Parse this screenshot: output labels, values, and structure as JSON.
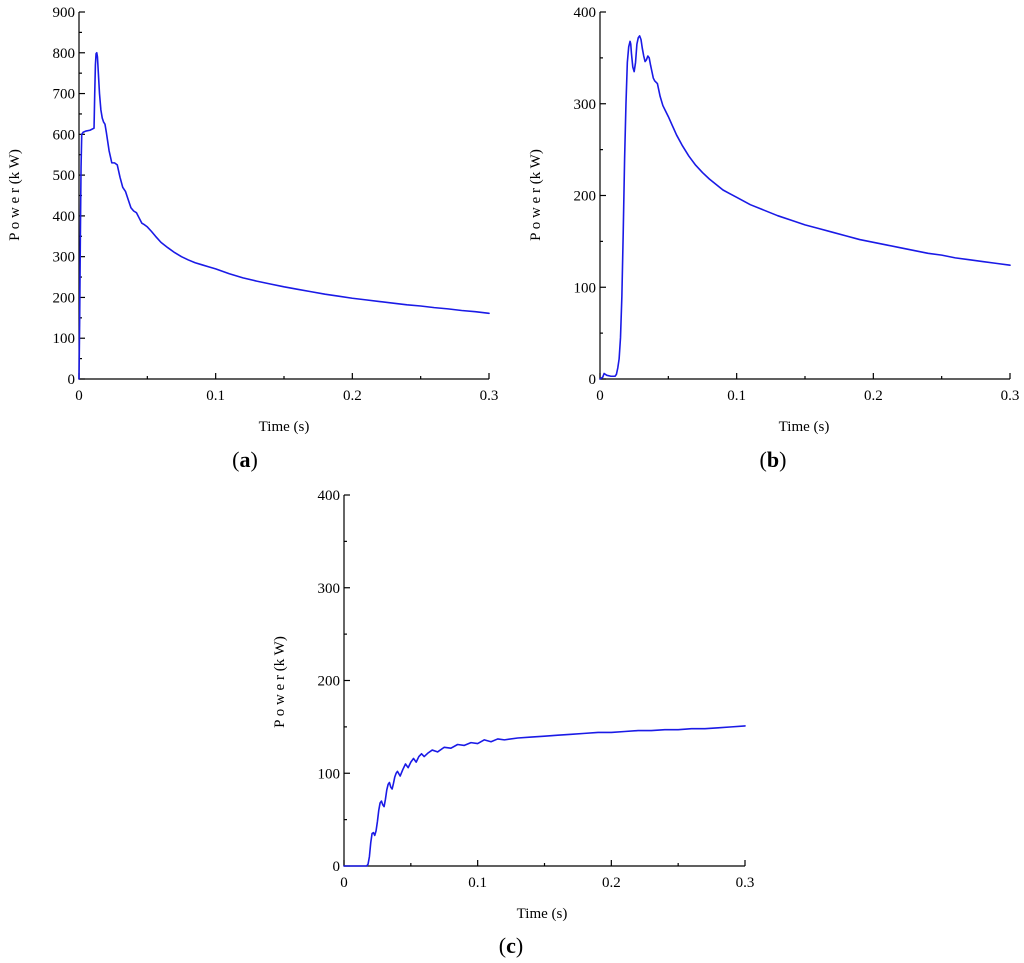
{
  "accent_color": "#1a1ae6",
  "chart_data": [
    {
      "type": "line",
      "panel_label": "a",
      "xlabel": "Time  (s)",
      "ylabel": "P o w e r  (k W)",
      "xlim": [
        0,
        0.3
      ],
      "ylim": [
        0,
        900
      ],
      "xticks": [
        0,
        0.1,
        0.2,
        0.3
      ],
      "xtick_labels": [
        "0",
        "0.1",
        "0.2",
        "0.3"
      ],
      "yticks": [
        0,
        100,
        200,
        300,
        400,
        500,
        600,
        700,
        800,
        900
      ],
      "ytick_labels": [
        "0",
        "100",
        "200",
        "300",
        "400",
        "500",
        "600",
        "700",
        "800",
        "900"
      ],
      "grid": false,
      "series": [
        {
          "color": "#1a1ae6",
          "x": [
            0,
            0.0005,
            0.001,
            0.0015,
            0.002,
            0.003,
            0.005,
            0.008,
            0.011,
            0.0115,
            0.012,
            0.0125,
            0.013,
            0.0135,
            0.014,
            0.015,
            0.016,
            0.017,
            0.018,
            0.019,
            0.02,
            0.022,
            0.024,
            0.026,
            0.028,
            0.03,
            0.032,
            0.034,
            0.036,
            0.038,
            0.04,
            0.042,
            0.044,
            0.046,
            0.048,
            0.05,
            0.053,
            0.056,
            0.06,
            0.065,
            0.07,
            0.075,
            0.08,
            0.085,
            0.09,
            0.095,
            0.1,
            0.11,
            0.12,
            0.13,
            0.14,
            0.15,
            0.16,
            0.17,
            0.18,
            0.19,
            0.2,
            0.21,
            0.22,
            0.23,
            0.24,
            0.25,
            0.26,
            0.27,
            0.28,
            0.29,
            0.3
          ],
          "y": [
            0,
            150,
            350,
            520,
            600,
            605,
            608,
            610,
            615,
            700,
            770,
            798,
            800,
            790,
            760,
            700,
            660,
            640,
            630,
            625,
            605,
            560,
            530,
            530,
            525,
            495,
            470,
            460,
            440,
            420,
            412,
            408,
            395,
            382,
            378,
            373,
            362,
            350,
            335,
            322,
            310,
            300,
            292,
            285,
            280,
            275,
            270,
            258,
            248,
            240,
            233,
            226,
            220,
            214,
            208,
            203,
            198,
            194,
            190,
            186,
            182,
            179,
            175,
            172,
            168,
            165,
            161
          ]
        }
      ]
    },
    {
      "type": "line",
      "panel_label": "b",
      "xlabel": "Time (s)",
      "ylabel": "P o w e r  (k W)",
      "xlim": [
        0,
        0.3
      ],
      "ylim": [
        0,
        400
      ],
      "xticks": [
        0,
        0.1,
        0.2,
        0.3
      ],
      "xtick_labels": [
        "0",
        "0.1",
        "0.2",
        "0.3"
      ],
      "yticks": [
        0,
        100,
        200,
        300,
        400
      ],
      "ytick_labels": [
        "0",
        "100",
        "200",
        "300",
        "400"
      ],
      "grid": false,
      "series": [
        {
          "color": "#1a1ae6",
          "x": [
            0,
            0.002,
            0.003,
            0.005,
            0.008,
            0.011,
            0.012,
            0.013,
            0.014,
            0.015,
            0.016,
            0.017,
            0.018,
            0.019,
            0.02,
            0.021,
            0.022,
            0.0225,
            0.023,
            0.024,
            0.025,
            0.026,
            0.027,
            0.028,
            0.029,
            0.03,
            0.031,
            0.032,
            0.033,
            0.034,
            0.035,
            0.036,
            0.037,
            0.038,
            0.039,
            0.04,
            0.042,
            0.044,
            0.046,
            0.048,
            0.05,
            0.053,
            0.056,
            0.06,
            0.065,
            0.07,
            0.075,
            0.08,
            0.085,
            0.09,
            0.095,
            0.1,
            0.11,
            0.12,
            0.13,
            0.14,
            0.15,
            0.16,
            0.17,
            0.18,
            0.19,
            0.2,
            0.21,
            0.22,
            0.23,
            0.24,
            0.25,
            0.26,
            0.27,
            0.28,
            0.29,
            0.3
          ],
          "y": [
            0,
            2,
            6,
            4,
            3,
            3,
            5,
            12,
            22,
            45,
            90,
            160,
            240,
            300,
            345,
            362,
            368,
            365,
            355,
            340,
            335,
            345,
            365,
            372,
            374,
            370,
            360,
            352,
            346,
            348,
            352,
            350,
            342,
            335,
            328,
            325,
            322,
            308,
            298,
            292,
            286,
            276,
            266,
            255,
            243,
            233,
            225,
            218,
            212,
            206,
            202,
            198,
            190,
            184,
            178,
            173,
            168,
            164,
            160,
            156,
            152,
            149,
            146,
            143,
            140,
            137,
            135,
            132,
            130,
            128,
            126,
            124
          ]
        }
      ]
    },
    {
      "type": "line",
      "panel_label": "c",
      "xlabel": "Time  (s)",
      "ylabel": "P o w e r  (k W)",
      "xlim": [
        0,
        0.3
      ],
      "ylim": [
        0,
        400
      ],
      "xticks": [
        0,
        0.1,
        0.2,
        0.3
      ],
      "xtick_labels": [
        "0",
        "0.1",
        "0.2",
        "0.3"
      ],
      "yticks": [
        0,
        100,
        200,
        300,
        400
      ],
      "ytick_labels": [
        "0",
        "100",
        "200",
        "300",
        "400"
      ],
      "grid": false,
      "series": [
        {
          "color": "#1a1ae6",
          "x": [
            0,
            0.005,
            0.01,
            0.015,
            0.017,
            0.018,
            0.019,
            0.02,
            0.021,
            0.022,
            0.023,
            0.024,
            0.025,
            0.026,
            0.027,
            0.028,
            0.029,
            0.03,
            0.031,
            0.032,
            0.033,
            0.034,
            0.035,
            0.036,
            0.037,
            0.038,
            0.039,
            0.04,
            0.042,
            0.044,
            0.046,
            0.048,
            0.05,
            0.052,
            0.054,
            0.056,
            0.058,
            0.06,
            0.063,
            0.066,
            0.07,
            0.075,
            0.08,
            0.085,
            0.09,
            0.095,
            0.1,
            0.105,
            0.11,
            0.115,
            0.12,
            0.13,
            0.14,
            0.15,
            0.16,
            0.17,
            0.18,
            0.19,
            0.2,
            0.21,
            0.22,
            0.23,
            0.24,
            0.25,
            0.26,
            0.27,
            0.28,
            0.29,
            0.3
          ],
          "y": [
            0,
            0,
            0,
            0,
            0,
            2,
            10,
            25,
            35,
            36,
            33,
            38,
            48,
            60,
            68,
            70,
            66,
            64,
            72,
            82,
            88,
            90,
            85,
            83,
            89,
            96,
            100,
            102,
            97,
            104,
            110,
            106,
            112,
            116,
            112,
            118,
            121,
            118,
            122,
            125,
            123,
            128,
            127,
            131,
            130,
            133,
            132,
            136,
            134,
            137,
            136,
            138,
            139,
            140,
            141,
            142,
            143,
            144,
            144,
            145,
            146,
            146,
            147,
            147,
            148,
            148,
            149,
            150,
            151
          ]
        }
      ]
    }
  ]
}
